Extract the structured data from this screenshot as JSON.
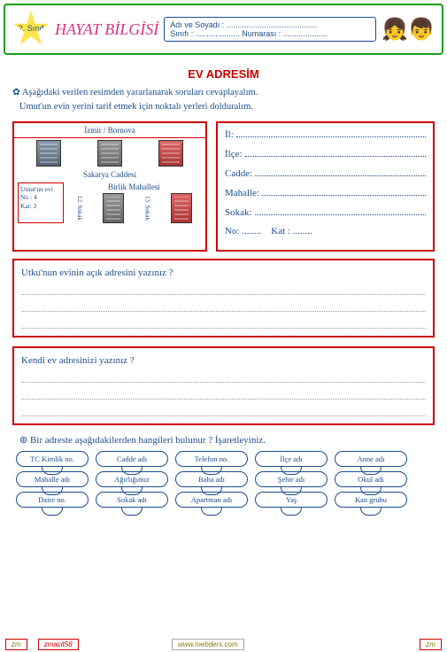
{
  "header": {
    "grade": "2.\nSınıf",
    "subject": "HAYAT BİLGİSİ",
    "name_label": "Adı ve Soyadı :",
    "class_label": "Sınıfı :",
    "no_label": "Numarası :"
  },
  "title": "EV  ADRESİM",
  "intro1": "Aşağıdaki verilen resimden yararlanarak soruları cevaplayalım.",
  "intro2": "Umut'un evin yerini tarif etmek için noktalı yerleri dolduralım.",
  "map": {
    "district": "İzmir / Bornova",
    "street": "Sakarya  Caddesi",
    "neighborhood": "Birlik Mahallesi",
    "house_title": "Umut'un evi",
    "house_no": "No : 4",
    "house_floor": "Kat: 2",
    "s1": "12. Sokak",
    "s2": "13. Sokak"
  },
  "fields": [
    "İl:",
    "İlçe:",
    "Cadde:",
    "Mahalle:",
    "Sokak:"
  ],
  "no": "No: ........",
  "kat": "Kat : ........",
  "q1": "Utku'nun evinin  açık adresini yazınız ?",
  "q2": "Kendi ev adresinizi yazınız ?",
  "q3": "Bir adreste aşağıdakilerden hangileri  bulunur ? İşaretleyiniz.",
  "tags": [
    "TC  Kimlik no.",
    "Cadde adı",
    "Telefon no.",
    "İlçe adı",
    "Anne adı",
    "Mahalle adı",
    "Ağırlığımız",
    "Baba  adı",
    "Şehir adı",
    "Okul adı",
    "Daire no.",
    "Sokak adı",
    "Apartman adı",
    "Yaş",
    "Kan grubu"
  ],
  "footer": {
    "left": "zm",
    "code": "zmacit58",
    "site": "www.mebders.com",
    "right": "zm"
  }
}
